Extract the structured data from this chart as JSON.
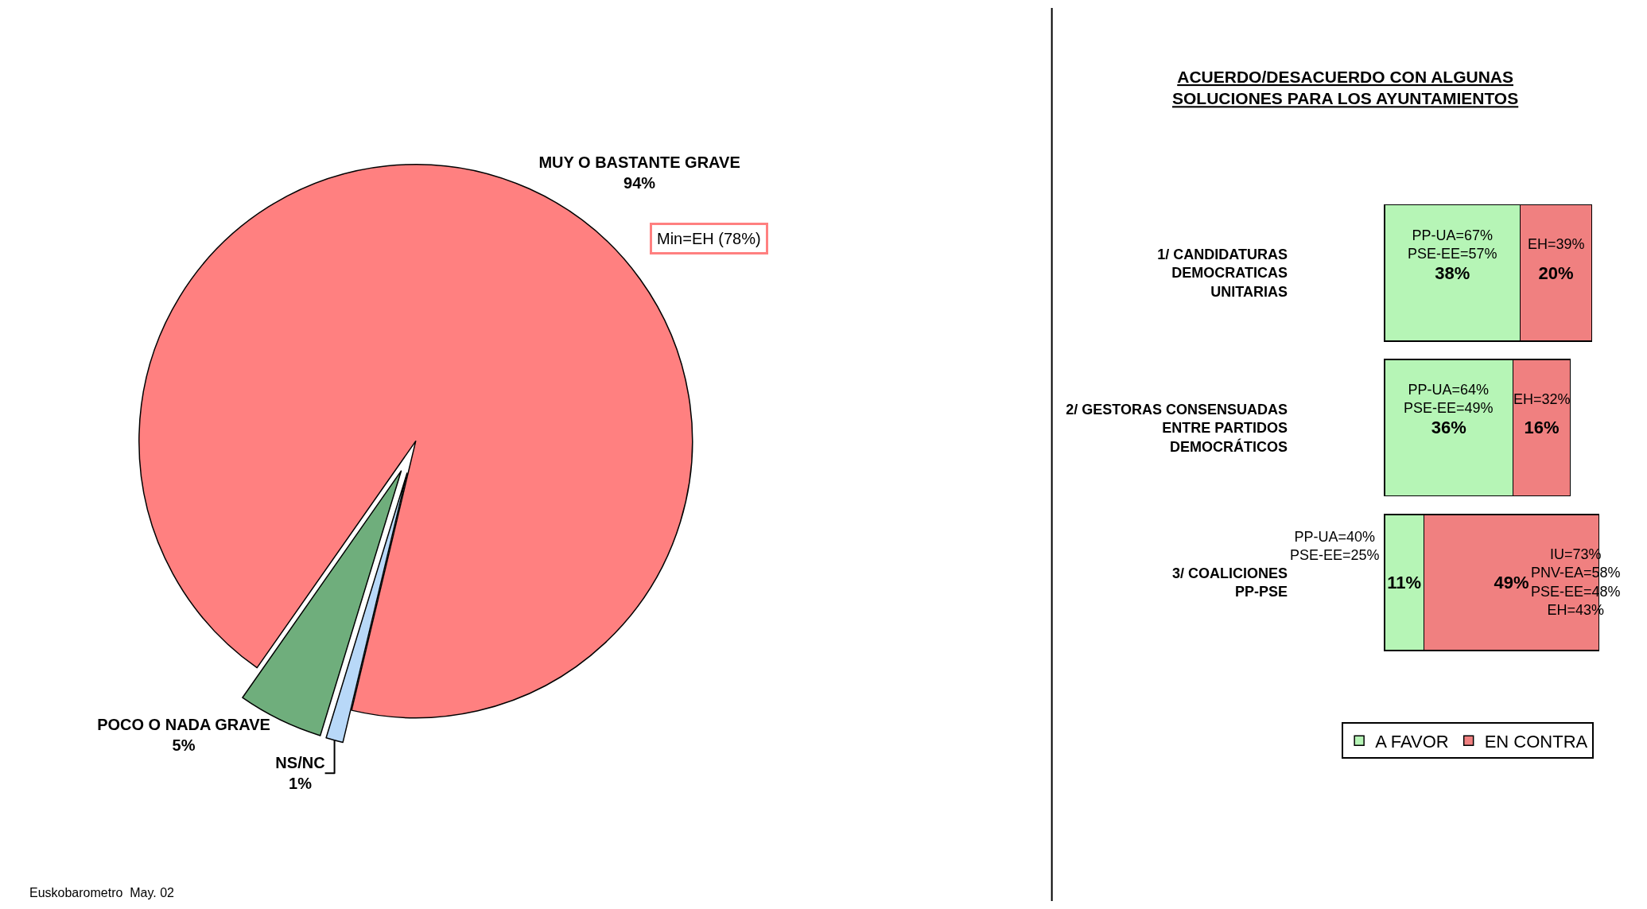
{
  "chart_data": [
    {
      "type": "pie",
      "categories": [
        "MUY O BASTANTE GRAVE",
        "POCO O NADA GRAVE",
        "NS/NC"
      ],
      "values": [
        94,
        5,
        1
      ],
      "colors": [
        "#ff8080",
        "#6fae7c",
        "#b8d8f8"
      ],
      "value_labels": [
        "94%",
        "5%",
        "1%"
      ],
      "legend": false,
      "annotations": [
        "Min=EH (78%)",
        "Euskobarometro  May. 02"
      ]
    },
    {
      "type": "bar",
      "orientation": "horizontal",
      "stacked": true,
      "title": "ACUERDO/DESACUERDO CON ALGUNAS\nSOLUCIONES PARA LOS AYUNTAMIENTOS",
      "categories": [
        "1/ CANDIDATURAS\nDEMOCRATICAS\nUNITARIAS",
        "2/ GESTORAS CONSENSUADAS\nENTRE PARTIDOS\nDEMOCRÁTICOS",
        "3/ COALICIONES\nPP-PSE"
      ],
      "series": [
        {
          "name": "A FAVOR",
          "color": "#b6f5b6",
          "values": [
            38,
            36,
            11
          ],
          "value_labels": [
            "38%",
            "36%",
            "11%"
          ]
        },
        {
          "name": "EN CONTRA",
          "color": "#f08080",
          "values": [
            20,
            16,
            49
          ],
          "value_labels": [
            "20%",
            "16%",
            "49%"
          ]
        }
      ],
      "annotations": [
        "PP-UA=67%\nPSE-EE=57%",
        "EH=39%",
        "PP-UA=64%\nPSE-EE=49%",
        "EH=32%",
        "PP-UA=40%\nPSE-EE=25%",
        "IU=73%\nPNV-EA=58%\nPSE-EE=48%\nEH=43%"
      ],
      "legend": "bottom"
    }
  ]
}
